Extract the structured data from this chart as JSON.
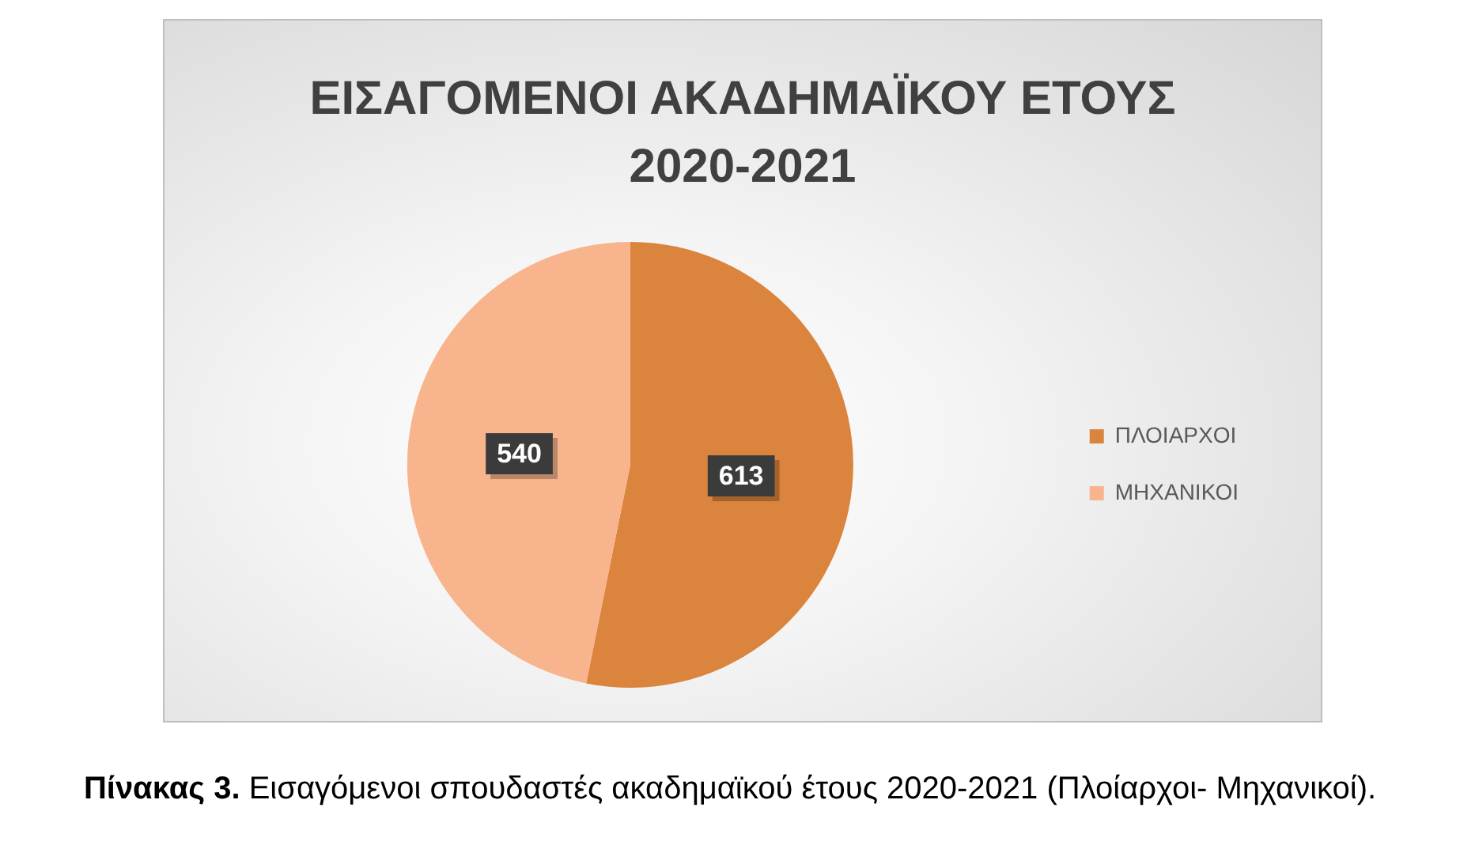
{
  "chart_data": {
    "type": "pie",
    "title": "ΕΙΣΑΓΟΜΕΝΟΙ ΑΚΑΔΗΜΑΪΚΟΥ ΕΤΟΥΣ 2020-2021",
    "categories": [
      "ΠΛΟΙΑΡΧΟΙ",
      "ΜΗΧΑΝΙΚΟΙ"
    ],
    "values": [
      613,
      540
    ],
    "colors": [
      "#db843d",
      "#f8b48c"
    ],
    "data_labels": true,
    "legend": "right",
    "annotations": [
      "Πίνακας 3. Εισαγόμενοι σπουδαστές ακαδημαϊκού έτους 2020-2021 (Πλοίαρχοι- Μηχανικοί)."
    ]
  }
}
